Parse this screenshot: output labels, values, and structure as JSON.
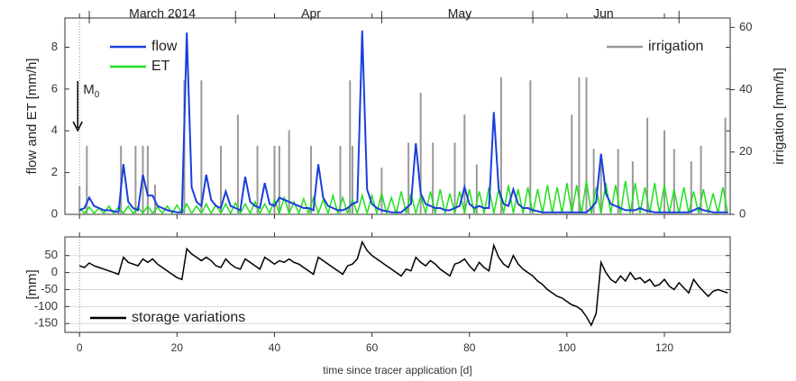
{
  "chart_data": [
    {
      "type": "line",
      "ylabel": "flow and ET [mm/h]",
      "y2label": "irrigation [mm/h]",
      "annotation": {
        "main": "M",
        "sub": "0"
      },
      "xlim": [
        -3,
        133.5
      ],
      "xticks": [
        0,
        20,
        40,
        60,
        80,
        100,
        120
      ],
      "top_xticks": [
        2,
        32,
        62,
        93,
        123
      ],
      "top_xlabels": [
        {
          "value": 17,
          "label": "March 2014"
        },
        {
          "value": 47.5,
          "label": "Apr"
        },
        {
          "value": 78,
          "label": "May"
        },
        {
          "value": 107.5,
          "label": "Jun"
        }
      ],
      "ylim": [
        0,
        9.4
      ],
      "yticks": [
        0,
        2,
        4,
        6,
        8
      ],
      "y2lim": [
        0,
        63
      ],
      "y2ticks": [
        0,
        20,
        40,
        60
      ],
      "legend": "upper left",
      "y2_legend": "upper right",
      "x": [
        0,
        1,
        2,
        3,
        4,
        5,
        6,
        7,
        8,
        9,
        10,
        11,
        12,
        13,
        14,
        15,
        16,
        17,
        18,
        19,
        20,
        21,
        22,
        23,
        24,
        25,
        26,
        27,
        28,
        29,
        30,
        31,
        32,
        33,
        34,
        35,
        36,
        37,
        38,
        39,
        40,
        41,
        42,
        43,
        44,
        45,
        46,
        47,
        48,
        49,
        50,
        51,
        52,
        53,
        54,
        55,
        56,
        57,
        58,
        59,
        60,
        61,
        62,
        63,
        64,
        65,
        66,
        67,
        68,
        69,
        70,
        71,
        72,
        73,
        74,
        75,
        76,
        77,
        78,
        79,
        80,
        81,
        82,
        83,
        84,
        85,
        86,
        87,
        88,
        89,
        90,
        91,
        92,
        93,
        94,
        95,
        96,
        97,
        98,
        99,
        100,
        101,
        102,
        103,
        104,
        105,
        106,
        107,
        108,
        109,
        110,
        111,
        112,
        113,
        114,
        115,
        116,
        117,
        118,
        119,
        120,
        121,
        122,
        123,
        124,
        125,
        126,
        127,
        128,
        129,
        130,
        131,
        132,
        133
      ],
      "series": [
        {
          "name": "irrigation",
          "color": "#999999",
          "axis": "y2",
          "kind": "bars",
          "x": [
            0,
            1.5,
            8.5,
            11.5,
            13,
            14,
            15.5,
            21.5,
            25,
            29,
            32.5,
            36.5,
            40,
            41,
            43,
            47.5,
            53.5,
            55.5,
            56,
            62,
            67.5,
            70,
            72.5,
            77,
            79,
            81.5,
            86.5,
            92.5,
            101,
            102.5,
            104,
            105.5,
            107,
            110.5,
            113.5,
            116.5,
            120,
            122,
            125.5,
            127.5,
            132.5
          ],
          "values": [
            9,
            22,
            22,
            22,
            22,
            22,
            9.5,
            43,
            43,
            22,
            32,
            22,
            22,
            22,
            27,
            22,
            22,
            43,
            22,
            15,
            23,
            39,
            23,
            23,
            32,
            16,
            44,
            43,
            32,
            44,
            44,
            21,
            17,
            21,
            17,
            31,
            27,
            21,
            17,
            22,
            31
          ]
        },
        {
          "name": "ET",
          "color": "#22e01e",
          "values": [
            0.3,
            0.05,
            0.35,
            0.05,
            0.3,
            0.05,
            0.4,
            0.05,
            0.35,
            0.05,
            0.4,
            0.05,
            0.35,
            0.05,
            0.4,
            0.05,
            0.35,
            0.05,
            0.4,
            0.05,
            0.45,
            0.05,
            0.5,
            0.05,
            0.4,
            0.05,
            0.5,
            0.05,
            0.45,
            0.05,
            0.5,
            0.05,
            0.55,
            0.05,
            0.5,
            0.05,
            0.6,
            0.05,
            0.5,
            0.05,
            0.7,
            0.05,
            0.8,
            0.05,
            0.6,
            0.05,
            0.75,
            0.05,
            0.8,
            0.05,
            0.7,
            0.05,
            0.9,
            0.05,
            0.8,
            0.05,
            0.7,
            0.05,
            0.9,
            0.05,
            0.9,
            0.05,
            1.0,
            0.05,
            0.8,
            0.05,
            1.1,
            0.05,
            1.0,
            0.05,
            0.9,
            0.05,
            1.1,
            0.05,
            1.2,
            0.05,
            1.0,
            0.05,
            1.1,
            0.05,
            1.2,
            0.05,
            1.1,
            0.05,
            1.3,
            0.05,
            1.2,
            0.05,
            1.4,
            0.05,
            1.2,
            0.05,
            1.3,
            0.05,
            1.2,
            0.05,
            1.4,
            0.05,
            1.3,
            0.05,
            1.5,
            0.05,
            1.4,
            0.05,
            1.6,
            0.05,
            1.3,
            0.05,
            1.5,
            0.05,
            1.4,
            0.05,
            1.6,
            0.05,
            1.5,
            0.05,
            1.3,
            0.05,
            1.5,
            0.05,
            1.4,
            0.05,
            1.2,
            0.05,
            1.3,
            0.05,
            1.1,
            0.05,
            1.2,
            0.05,
            1.0,
            0.05,
            1.3,
            0.05
          ]
        },
        {
          "name": "flow",
          "color": "#1a3fdc",
          "values": [
            0.2,
            0.3,
            0.8,
            0.4,
            0.3,
            0.2,
            0.2,
            0.15,
            0.1,
            2.4,
            0.6,
            0.3,
            0.2,
            1.9,
            0.9,
            0.9,
            0.4,
            0.3,
            0.2,
            0.15,
            0.1,
            0.1,
            8.7,
            1.3,
            0.6,
            0.4,
            1.9,
            0.7,
            0.4,
            0.3,
            1.1,
            0.4,
            0.3,
            0.2,
            1.8,
            0.6,
            0.4,
            0.3,
            1.5,
            0.5,
            0.4,
            0.8,
            0.7,
            0.6,
            0.5,
            0.4,
            0.3,
            0.3,
            0.2,
            2.4,
            0.8,
            0.4,
            0.3,
            0.2,
            0.2,
            0.3,
            0.5,
            0.6,
            8.8,
            1.2,
            0.5,
            0.3,
            0.2,
            0.15,
            0.1,
            0.1,
            0.1,
            0.3,
            0.5,
            3.4,
            1.0,
            0.5,
            0.4,
            0.3,
            0.3,
            0.2,
            0.2,
            0.3,
            0.4,
            1.3,
            0.5,
            0.3,
            0.4,
            0.3,
            0.3,
            4.9,
            1.2,
            0.5,
            0.4,
            1.2,
            0.5,
            0.3,
            0.3,
            0.2,
            0.15,
            0.1,
            0.1,
            0.1,
            0.1,
            0.1,
            0.1,
            0.1,
            0.1,
            0.1,
            0.1,
            0.3,
            0.6,
            2.9,
            1.0,
            0.5,
            0.4,
            0.3,
            0.2,
            0.2,
            0.2,
            0.3,
            0.2,
            0.15,
            0.1,
            0.1,
            0.1,
            0.1,
            0.1,
            0.1,
            0.1,
            0.1,
            0.2,
            0.3,
            0.2,
            0.15,
            0.1,
            0.1,
            0.1,
            0.1
          ]
        }
      ]
    },
    {
      "type": "line",
      "ylabel": "[mm]",
      "xlabel": "time since tracer application [d]",
      "xlim": [
        -3,
        133.5
      ],
      "xticks": [
        0,
        20,
        40,
        60,
        80,
        100,
        120
      ],
      "ylim": [
        -176,
        105
      ],
      "yticks": [
        50,
        0,
        -50,
        -100,
        -150
      ],
      "grid": true,
      "legend": "lower left",
      "x": [
        0,
        1,
        2,
        3,
        4,
        5,
        6,
        7,
        8,
        9,
        10,
        11,
        12,
        13,
        14,
        15,
        16,
        17,
        18,
        19,
        20,
        21,
        22,
        23,
        24,
        25,
        26,
        27,
        28,
        29,
        30,
        31,
        32,
        33,
        34,
        35,
        36,
        37,
        38,
        39,
        40,
        41,
        42,
        43,
        44,
        45,
        46,
        47,
        48,
        49,
        50,
        51,
        52,
        53,
        54,
        55,
        56,
        57,
        58,
        59,
        60,
        61,
        62,
        63,
        64,
        65,
        66,
        67,
        68,
        69,
        70,
        71,
        72,
        73,
        74,
        75,
        76,
        77,
        78,
        79,
        80,
        81,
        82,
        83,
        84,
        85,
        86,
        87,
        88,
        89,
        90,
        91,
        92,
        93,
        94,
        95,
        96,
        97,
        98,
        99,
        100,
        101,
        102,
        103,
        104,
        105,
        106,
        107,
        108,
        109,
        110,
        111,
        112,
        113,
        114,
        115,
        116,
        117,
        118,
        119,
        120,
        121,
        122,
        123,
        124,
        125,
        126,
        127,
        128,
        129,
        130,
        131,
        132,
        133
      ],
      "series": [
        {
          "name": "storage variations",
          "color": "#000000",
          "values": [
            20,
            15,
            28,
            20,
            15,
            10,
            5,
            0,
            -5,
            45,
            30,
            25,
            20,
            40,
            30,
            40,
            25,
            15,
            5,
            -5,
            -15,
            -20,
            70,
            55,
            45,
            35,
            45,
            35,
            20,
            15,
            40,
            25,
            15,
            10,
            40,
            30,
            20,
            10,
            45,
            35,
            25,
            35,
            30,
            40,
            30,
            25,
            15,
            5,
            -5,
            45,
            35,
            25,
            15,
            5,
            -5,
            20,
            25,
            40,
            90,
            65,
            50,
            40,
            30,
            20,
            10,
            0,
            -10,
            10,
            5,
            45,
            30,
            20,
            35,
            25,
            10,
            0,
            -10,
            25,
            30,
            40,
            20,
            5,
            30,
            15,
            5,
            80,
            45,
            25,
            15,
            50,
            25,
            10,
            0,
            -10,
            -25,
            -35,
            -50,
            -60,
            -70,
            -75,
            -85,
            -95,
            -100,
            -110,
            -130,
            -155,
            -120,
            30,
            0,
            -20,
            -30,
            -10,
            -25,
            0,
            -20,
            -15,
            -30,
            -20,
            -40,
            -35,
            -20,
            -40,
            -50,
            -30,
            -45,
            -60,
            -20,
            -40,
            -55,
            -70,
            -55,
            -50,
            -55,
            -60
          ]
        }
      ]
    }
  ]
}
